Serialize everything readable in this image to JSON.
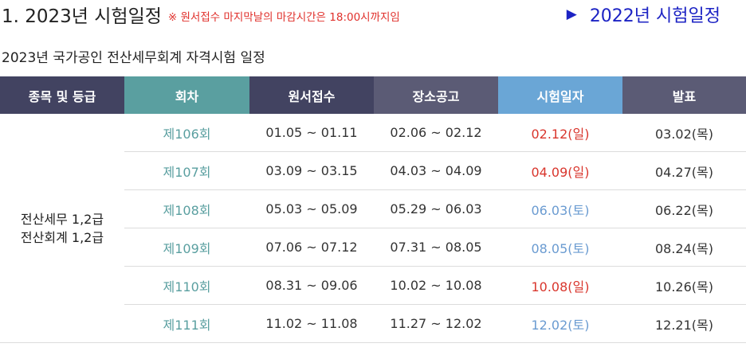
{
  "title": "1. 2023년 시험일정",
  "notice": "※ 원서접수 마지막날의 마감시간은 18:00시까지임",
  "prev_year_link": {
    "arrow": "▶",
    "label": "2022년 시험일정"
  },
  "subtitle": "2023년 국가공인 전산세무회계 자격시험 일정",
  "table": {
    "headers": {
      "grade": "종목 및 등급",
      "round": "회차",
      "application": "원서접수",
      "location_notice": "장소공고",
      "exam_date": "시험일자",
      "result": "발표"
    },
    "grade": {
      "line1": "전산세무 1,2급",
      "line2": "전산회계 1,2급"
    },
    "rows": [
      {
        "round": "제106회",
        "application": "01.05 ~ 01.11",
        "location_notice": "02.06 ~ 02.12",
        "exam_date": "02.12(일)",
        "exam_color": "red",
        "result": "03.02(목)"
      },
      {
        "round": "제107회",
        "application": "03.09 ~ 03.15",
        "location_notice": "04.03 ~ 04.09",
        "exam_date": "04.09(일)",
        "exam_color": "red",
        "result": "04.27(목)"
      },
      {
        "round": "제108회",
        "application": "05.03 ~ 05.09",
        "location_notice": "05.29 ~ 06.03",
        "exam_date": "06.03(토)",
        "exam_color": "blue",
        "result": "06.22(목)"
      },
      {
        "round": "제109회",
        "application": "07.06 ~ 07.12",
        "location_notice": "07.31 ~ 08.05",
        "exam_date": "08.05(토)",
        "exam_color": "blue",
        "result": "08.24(목)"
      },
      {
        "round": "제110회",
        "application": "08.31 ~ 09.06",
        "location_notice": "10.02 ~ 10.08",
        "exam_date": "10.08(일)",
        "exam_color": "red",
        "result": "10.26(목)"
      },
      {
        "round": "제111회",
        "application": "11.02 ~ 11.08",
        "location_notice": "11.27 ~ 12.02",
        "exam_date": "12.02(토)",
        "exam_color": "blue",
        "result": "12.21(목)"
      }
    ]
  },
  "colors": {
    "header_dark": "#424361",
    "header_teal": "#5a9fa0",
    "header_slate": "#5b5b75",
    "header_sky": "#6aa6d6",
    "sunday_red": "#d9362d",
    "saturday_blue": "#6a9bd1",
    "link_blue": "#1c23c4",
    "notice_red": "#e0302b"
  }
}
